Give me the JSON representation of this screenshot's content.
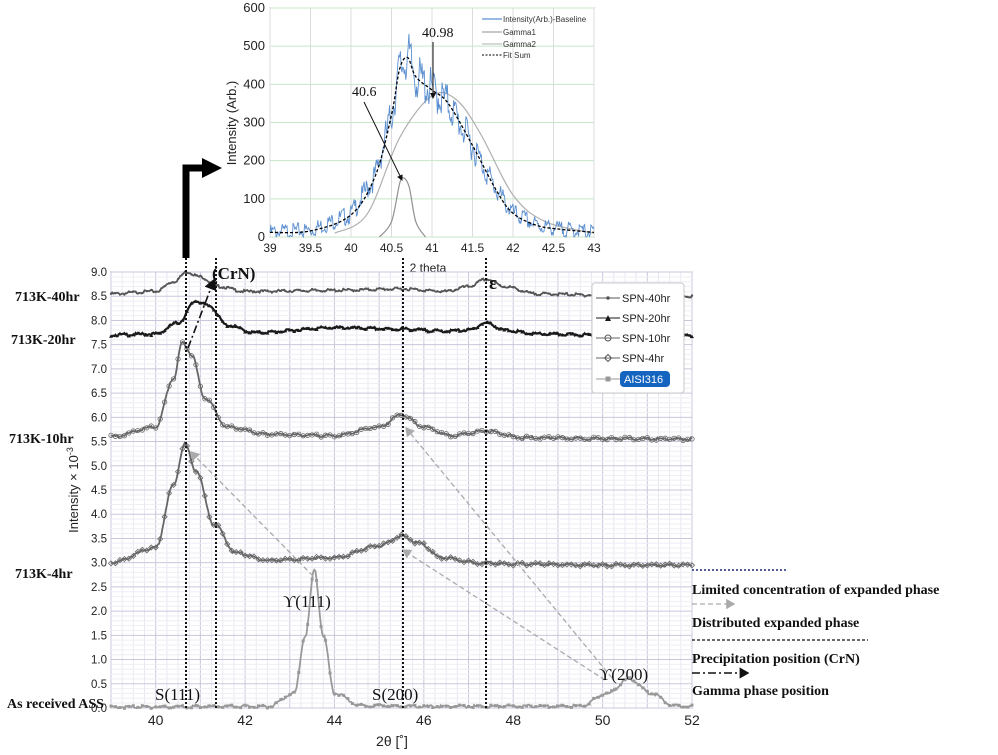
{
  "chart_data": [
    {
      "type": "line",
      "panel": "inset",
      "xlabel": "2 theta",
      "ylabel": "Intensity (Arb.)",
      "xlim": [
        39,
        43
      ],
      "ylim": [
        0,
        600
      ],
      "xticks": [
        "39",
        "39.5",
        "40",
        "40.5",
        "41",
        "41.5",
        "42",
        "42.5",
        "43"
      ],
      "yticks": [
        "0",
        "100",
        "200",
        "300",
        "400",
        "500",
        "600"
      ],
      "grid": true,
      "legend_position": "top-right",
      "series": [
        {
          "name": "Intensity(Arb.)-Baseline",
          "color": "#5b8fd0",
          "x": [
            39.0,
            39.5,
            40.0,
            40.3,
            40.5,
            40.6,
            40.7,
            40.8,
            41.0,
            41.2,
            41.5,
            41.8,
            42.0,
            42.3,
            42.6,
            43.0
          ],
          "y": [
            12,
            18,
            60,
            160,
            320,
            440,
            475,
            420,
            385,
            350,
            240,
            120,
            62,
            30,
            20,
            12
          ]
        },
        {
          "name": "Gamma1",
          "color": "#909090",
          "x": [
            40.6,
            40.65,
            40.7
          ],
          "y": [
            0,
            155,
            0
          ]
        },
        {
          "name": "Gamma2",
          "color": "#b0b0b0",
          "x": [
            39.8,
            40.2,
            40.6,
            41.0,
            41.3,
            41.6,
            42.0,
            42.4,
            43.0
          ],
          "y": [
            10,
            60,
            260,
            370,
            360,
            270,
            110,
            40,
            10
          ]
        },
        {
          "name": "Fit Sum",
          "color": "#000000",
          "x": [
            39.0,
            39.5,
            40.0,
            40.3,
            40.5,
            40.6,
            40.7,
            40.8,
            41.0,
            41.2,
            41.5,
            41.8,
            42.0,
            42.3,
            42.6,
            43.0
          ],
          "y": [
            12,
            16,
            58,
            160,
            320,
            440,
            470,
            420,
            385,
            350,
            240,
            120,
            62,
            30,
            20,
            12
          ]
        }
      ],
      "annotations": [
        {
          "text": "40.98",
          "x": 40.98,
          "y": 370
        },
        {
          "text": "40.6",
          "x": 40.6,
          "y": 155
        }
      ]
    },
    {
      "type": "line",
      "panel": "main",
      "xlabel": "2θ [˚]",
      "ylabel": "Intensity × 10",
      "ylabel_exponent": "-3",
      "xlim": [
        39,
        52
      ],
      "ylim": [
        0,
        9
      ],
      "xticks": [
        "40",
        "42",
        "44",
        "46",
        "48",
        "50",
        "52"
      ],
      "yticks": [
        "0.0",
        "0.5",
        "1.0",
        "1.5",
        "2.0",
        "2.5",
        "3.0",
        "3.5",
        "4.0",
        "4.5",
        "5.0",
        "5.5",
        "6.0",
        "6.5",
        "7.0",
        "7.5",
        "8.0",
        "8.5",
        "9.0"
      ],
      "grid": true,
      "legend_position": "top-right",
      "series": [
        {
          "name": "SPN-40hr",
          "color": "#555555",
          "x": [
            39,
            40,
            40.4,
            40.7,
            41.0,
            41.4,
            42,
            44,
            45.5,
            46.5,
            47.0,
            47.4,
            47.8,
            48.5,
            50,
            52
          ],
          "y": [
            8.55,
            8.6,
            8.8,
            9.0,
            8.9,
            8.7,
            8.6,
            8.62,
            8.65,
            8.6,
            8.7,
            8.85,
            8.7,
            8.55,
            8.52,
            8.5
          ]
        },
        {
          "name": "SPN-20hr",
          "color": "#1a1a1a",
          "x": [
            39,
            40,
            40.5,
            40.9,
            41.2,
            41.6,
            42.2,
            44,
            45.5,
            46.5,
            47.0,
            47.4,
            47.8,
            48.5,
            50,
            52
          ],
          "y": [
            7.7,
            7.72,
            7.95,
            8.4,
            8.3,
            7.9,
            7.75,
            7.85,
            7.82,
            7.78,
            7.8,
            7.95,
            7.8,
            7.72,
            7.7,
            7.68
          ]
        },
        {
          "name": "SPN-10hr",
          "color": "#666666",
          "x": [
            39,
            40.0,
            40.4,
            40.6,
            40.8,
            41.1,
            41.6,
            42.5,
            44,
            45.0,
            45.5,
            46.0,
            46.6,
            47.4,
            48.2,
            50,
            52
          ],
          "y": [
            5.6,
            5.8,
            6.8,
            7.55,
            7.3,
            6.4,
            5.8,
            5.65,
            5.62,
            5.8,
            6.05,
            5.8,
            5.62,
            5.72,
            5.58,
            5.56,
            5.55
          ]
        },
        {
          "name": "SPN-4hr",
          "color": "#666666",
          "x": [
            39,
            40.0,
            40.4,
            40.65,
            40.9,
            41.3,
            41.8,
            42.5,
            44,
            45.0,
            45.5,
            45.9,
            46.4,
            47.2,
            48,
            50,
            52
          ],
          "y": [
            3.0,
            3.3,
            4.6,
            5.45,
            4.9,
            3.8,
            3.2,
            3.05,
            3.1,
            3.35,
            3.55,
            3.4,
            3.1,
            3.0,
            2.97,
            2.95,
            2.95
          ]
        },
        {
          "name": "AISI316",
          "color": "#999999",
          "x": [
            39,
            42.5,
            43.1,
            43.35,
            43.55,
            43.75,
            44.0,
            44.6,
            46,
            49.5,
            50.1,
            50.6,
            51.1,
            51.6,
            52
          ],
          "y": [
            0.02,
            0.03,
            0.3,
            1.5,
            2.85,
            1.5,
            0.3,
            0.05,
            0.03,
            0.04,
            0.3,
            0.6,
            0.3,
            0.05,
            0.03
          ]
        }
      ],
      "sample_labels": [
        "713K-40hr",
        "713K-20hr",
        "713K-10hr",
        "713K-4hr",
        "As received ASS"
      ],
      "annotations": {
        "crn": "(CrN)",
        "epsilon": "ε",
        "y111": "ϒ(111)",
        "y200": "ϒ(200)",
        "s111": "S(111)",
        "s200": "S(200)"
      }
    }
  ],
  "legend_notes": [
    "Limited concentration of expanded phase",
    "Distributed expanded phase",
    "Precipitation position (CrN)",
    "Gamma phase position"
  ]
}
